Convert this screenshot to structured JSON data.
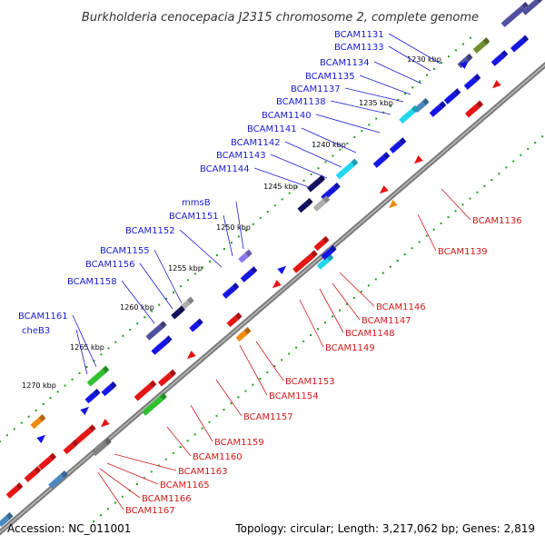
{
  "title": "Burkholderia cenocepacia J2315 chromosome 2, complete genome",
  "footer": {
    "accession": "Accession: NC_011001",
    "summary": "Topology: circular; Length: 3,217,062 bp; Genes: 2,819"
  },
  "colors": {
    "forward_gene": "#1515e6",
    "reverse_gene": "#e61515",
    "backbone": "#808080",
    "tick": "#1e9e1e",
    "forward_label": "#1a1ad0",
    "reverse_label": "#d01a1a",
    "ticklabel": "#000000"
  },
  "ticks": [
    "1230 kbp",
    "1235 kbp",
    "1240 kbp",
    "1245 kbp",
    "1250 kbp",
    "1255 kbp",
    "1260 kbp",
    "1265 kbp",
    "1270 kbp"
  ],
  "forward_labels": [
    "BCAM1131",
    "BCAM1133",
    "BCAM1134",
    "BCAM1135",
    "BCAM1137",
    "BCAM1138",
    "BCAM1140",
    "BCAM1141",
    "BCAM1142",
    "BCAM1143",
    "BCAM1144",
    "mmsB",
    "BCAM1151",
    "BCAM1152",
    "BCAM1155",
    "BCAM1156",
    "BCAM1158",
    "BCAM1161",
    "cheB3"
  ],
  "reverse_labels": [
    "BCAM1136",
    "BCAM1139",
    "BCAM1146",
    "BCAM1147",
    "BCAM1148",
    "BCAM1149",
    "BCAM1153",
    "BCAM1154",
    "BCAM1157",
    "BCAM1159",
    "BCAM1160",
    "BCAM1163",
    "BCAM1165",
    "BCAM1166",
    "BCAM1167"
  ],
  "feature_colors": {
    "blue": "#1515e6",
    "red": "#e61515",
    "cyan": "#22d6f0",
    "steel": "#4a88c0",
    "purple": "#5050a0",
    "lavender": "#8a7ae8",
    "navy": "#101060",
    "green": "#30c030",
    "olive": "#70902a",
    "gray": "#808080",
    "lightgray": "#b0b0b0",
    "orange": "#f08a10"
  }
}
